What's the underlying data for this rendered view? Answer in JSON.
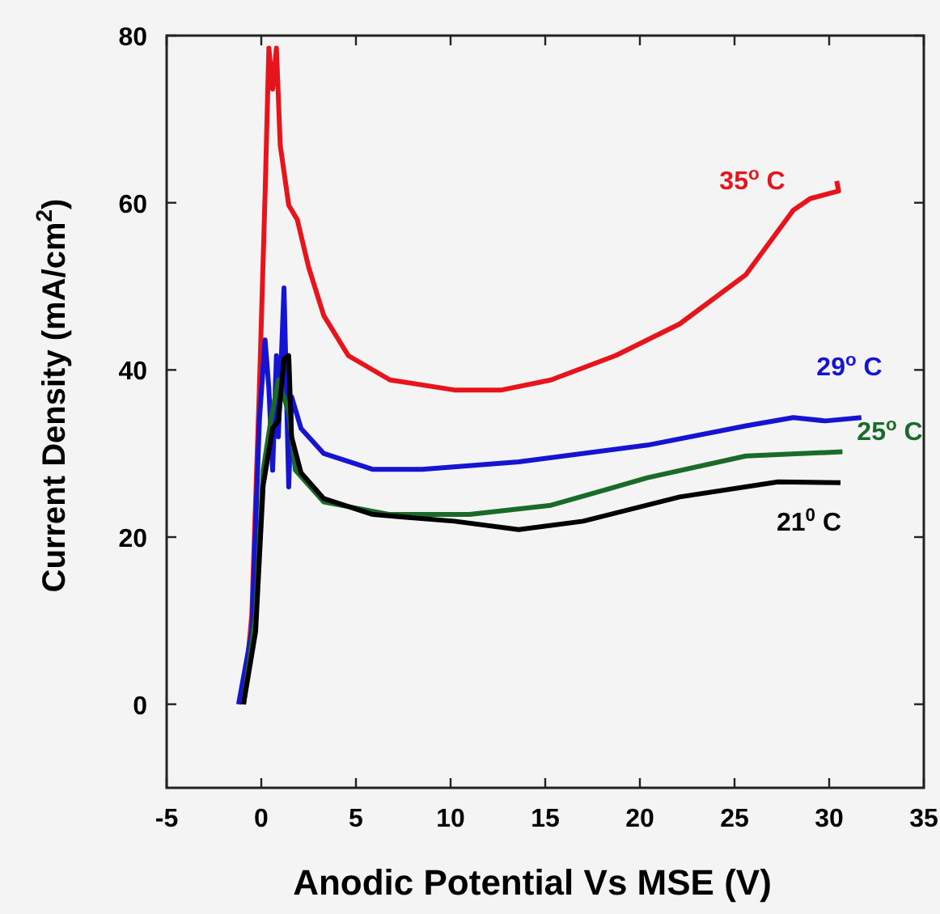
{
  "chart_data": {
    "type": "line",
    "xlabel": "Anodic Potential Vs MSE (V)",
    "ylabel": "Current Density (mA/cm$^{2}$)",
    "xlim": [
      -5,
      35
    ],
    "ylim": [
      -10,
      80
    ],
    "xticks": [
      -5,
      0,
      5,
      10,
      15,
      20,
      25,
      30,
      35
    ],
    "yticks": [
      0,
      20,
      40,
      60,
      80
    ],
    "grid": false,
    "marker": "none",
    "line_style": "solid",
    "series": [
      {
        "name": "35$^{o}$ C",
        "color": "#e8141c",
        "x": [
          -0.94,
          -0.5,
          -0.1,
          0.2,
          0.4,
          0.6,
          0.8,
          1.0,
          1.45,
          1.9,
          2.5,
          3.3,
          4.6,
          6.8,
          10.2,
          12.7,
          15.3,
          18.7,
          22.1,
          25.6,
          28.1,
          29,
          30.5,
          30.4
        ],
        "values": [
          0,
          10.7,
          37.8,
          61,
          78.5,
          73.6,
          78.5,
          66.9,
          59.7,
          58,
          52.3,
          46.5,
          41.7,
          38.8,
          37.6,
          37.6,
          38.8,
          41.7,
          45.5,
          51.4,
          59.1,
          60.5,
          61.4,
          62.6
        ]
      },
      {
        "name": "29$^{o}$ C",
        "color": "#1414d2",
        "x": [
          -1.2,
          -0.5,
          -0.1,
          0.2,
          0.4,
          0.6,
          0.8,
          0.9,
          1.2,
          1.45,
          1.6,
          2.1,
          3.3,
          5.9,
          8.5,
          13.6,
          20.4,
          25.6,
          28.1,
          29.8,
          31.7
        ],
        "values": [
          0,
          8.7,
          34,
          43.6,
          37.8,
          28,
          41.7,
          32,
          49.8,
          26,
          36.8,
          33,
          30,
          28.1,
          28.1,
          29,
          31,
          33.3,
          34.3,
          33.9,
          34.3
        ]
      },
      {
        "name": "25$^{o}$ C",
        "color": "#1a6b2a",
        "x": [
          -0.94,
          -0.3,
          0.1,
          0.5,
          0.9,
          1.45,
          1.8,
          3.3,
          6.8,
          11,
          15.3,
          20.4,
          25.6,
          30.7
        ],
        "values": [
          0,
          10.7,
          28,
          33.9,
          38.8,
          34.9,
          28,
          24.2,
          22.7,
          22.7,
          23.8,
          27.1,
          29.7,
          30.2
        ]
      },
      {
        "name": "21$^{0}$ C",
        "color": "#000000",
        "x": [
          -0.94,
          -0.3,
          0.1,
          0.6,
          0.9,
          1.2,
          1.45,
          1.6,
          2.1,
          3.3,
          5.9,
          10.2,
          13.6,
          17,
          22.1,
          27.3,
          30.6
        ],
        "values": [
          0,
          8.7,
          26.2,
          33,
          33.9,
          41.3,
          41.7,
          32,
          27.7,
          24.6,
          22.7,
          21.9,
          20.9,
          21.9,
          24.8,
          26.6,
          26.5
        ]
      }
    ]
  }
}
